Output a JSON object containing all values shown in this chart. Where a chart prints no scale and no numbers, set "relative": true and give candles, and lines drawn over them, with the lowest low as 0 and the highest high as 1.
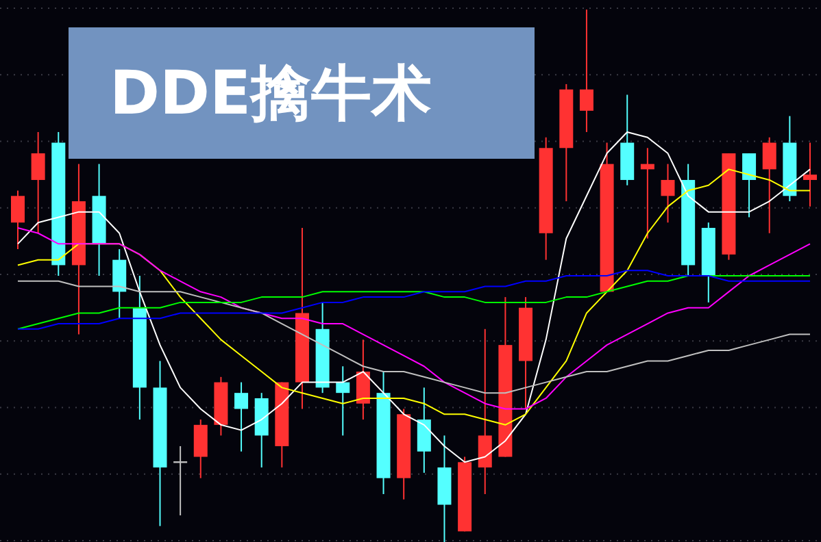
{
  "chart_data": {
    "type": "candlestick",
    "title": "DDE擒牛术",
    "relative": true,
    "grid": "y",
    "categories": [
      null,
      null,
      null,
      null,
      null,
      null,
      null,
      null,
      null,
      null,
      null,
      null,
      null,
      null,
      null,
      null,
      null,
      null,
      null,
      null,
      null,
      null,
      null,
      null,
      null,
      null,
      null,
      null,
      null,
      null,
      null,
      null,
      null,
      null,
      null,
      null,
      null,
      null,
      null,
      null
    ],
    "ohlc": [
      [
        0.6,
        0.66,
        0.55,
        0.65
      ],
      [
        0.68,
        0.77,
        0.58,
        0.73
      ],
      [
        0.75,
        0.77,
        0.5,
        0.52
      ],
      [
        0.52,
        0.71,
        0.39,
        0.64
      ],
      [
        0.65,
        0.71,
        0.5,
        0.56
      ],
      [
        0.53,
        0.55,
        0.42,
        0.47
      ],
      [
        0.44,
        0.5,
        0.23,
        0.29
      ],
      [
        0.29,
        0.34,
        0.03,
        0.14
      ],
      [
        0.15,
        0.18,
        0.05,
        0.15
      ],
      [
        0.16,
        0.23,
        0.12,
        0.22
      ],
      [
        0.22,
        0.31,
        0.2,
        0.3
      ],
      [
        0.28,
        0.3,
        0.17,
        0.25
      ],
      [
        0.27,
        0.28,
        0.14,
        0.2
      ],
      [
        0.18,
        0.3,
        0.14,
        0.3
      ],
      [
        0.3,
        0.59,
        0.25,
        0.43
      ],
      [
        0.4,
        0.45,
        0.28,
        0.29
      ],
      [
        0.3,
        0.33,
        0.2,
        0.28
      ],
      [
        0.26,
        0.38,
        0.23,
        0.32
      ],
      [
        0.28,
        0.32,
        0.09,
        0.12
      ],
      [
        0.12,
        0.25,
        0.08,
        0.24
      ],
      [
        0.23,
        0.29,
        0.13,
        0.17
      ],
      [
        0.14,
        0.2,
        0,
        0.07
      ],
      [
        0.02,
        0.16,
        0.02,
        0.15
      ],
      [
        0.14,
        0.4,
        0.09,
        0.2
      ],
      [
        0.16,
        0.46,
        0.16,
        0.37
      ],
      [
        0.34,
        0.46,
        0.25,
        0.44
      ],
      [
        0.58,
        0.76,
        0.53,
        0.74
      ],
      [
        0.74,
        0.86,
        0.64,
        0.85
      ],
      [
        0.81,
        1,
        0.77,
        0.85
      ],
      [
        0.47,
        0.75,
        0.47,
        0.71
      ],
      [
        0.75,
        0.84,
        0.67,
        0.68
      ],
      [
        0.7,
        0.74,
        0.57,
        0.71
      ],
      [
        0.65,
        0.71,
        0.6,
        0.68
      ],
      [
        0.68,
        0.71,
        0.5,
        0.52
      ],
      [
        0.59,
        0.6,
        0.45,
        0.5
      ],
      [
        0.54,
        0.73,
        0.53,
        0.73
      ],
      [
        0.73,
        0.73,
        0.61,
        0.68
      ],
      [
        0.7,
        0.76,
        0.58,
        0.75
      ],
      [
        0.75,
        0.8,
        0.64,
        0.65
      ],
      [
        0.68,
        0.75,
        0.63,
        0.69
      ]
    ],
    "colors": [
      "#ff3232",
      "#ff3232",
      "#54ffff",
      "#ff3232",
      "#54ffff",
      "#54ffff",
      "#54ffff",
      "#54ffff",
      "#c0c0c0",
      "#ff3232",
      "#ff3232",
      "#54ffff",
      "#54ffff",
      "#ff3232",
      "#ff3232",
      "#54ffff",
      "#54ffff",
      "#ff3232",
      "#54ffff",
      "#ff3232",
      "#54ffff",
      "#54ffff",
      "#ff3232",
      "#ff3232",
      "#ff3232",
      "#ff3232",
      "#ff3232",
      "#ff3232",
      "#ff3232",
      "#ff3232",
      "#54ffff",
      "#ff3232",
      "#ff3232",
      "#54ffff",
      "#54ffff",
      "#ff3232",
      "#54ffff",
      "#ff3232",
      "#54ffff",
      "#ff3232"
    ],
    "series": [
      {
        "type": "line",
        "color": "#ffffff",
        "values": [
          0.56,
          0.6,
          0.61,
          0.62,
          0.62,
          0.58,
          0.47,
          0.37,
          0.29,
          0.25,
          0.22,
          0.21,
          0.23,
          0.26,
          0.3,
          0.3,
          0.3,
          0.32,
          0.28,
          0.24,
          0.22,
          0.18,
          0.15,
          0.16,
          0.19,
          0.24,
          0.38,
          0.57,
          0.65,
          0.73,
          0.77,
          0.76,
          0.73,
          0.65,
          0.62,
          0.62,
          0.62,
          0.64,
          0.67,
          0.7
        ]
      },
      {
        "type": "line",
        "color": "#ffff00",
        "values": [
          0.52,
          0.53,
          0.53,
          0.56,
          0.56,
          0.56,
          0.54,
          0.51,
          0.46,
          0.42,
          0.38,
          0.35,
          0.32,
          0.29,
          0.28,
          0.27,
          0.26,
          0.27,
          0.27,
          0.27,
          0.26,
          0.24,
          0.24,
          0.23,
          0.22,
          0.24,
          0.29,
          0.34,
          0.43,
          0.47,
          0.51,
          0.58,
          0.63,
          0.66,
          0.67,
          0.7,
          0.69,
          0.68,
          0.66,
          0.66
        ]
      },
      {
        "type": "line",
        "color": "#ff00ff",
        "values": [
          0.59,
          0.58,
          0.56,
          0.56,
          0.56,
          0.56,
          0.54,
          0.51,
          0.49,
          0.47,
          0.46,
          0.44,
          0.43,
          0.42,
          0.42,
          0.41,
          0.41,
          0.39,
          0.37,
          0.35,
          0.33,
          0.3,
          0.28,
          0.26,
          0.25,
          0.25,
          0.27,
          0.31,
          0.34,
          0.37,
          0.39,
          0.41,
          0.43,
          0.44,
          0.44,
          0.47,
          0.5,
          0.52,
          0.54,
          0.56
        ]
      },
      {
        "type": "line",
        "color": "#c0c0c0",
        "values": [
          0.49,
          0.49,
          0.49,
          0.48,
          0.48,
          0.48,
          0.47,
          0.47,
          0.47,
          0.46,
          0.45,
          0.44,
          0.43,
          0.41,
          0.39,
          0.37,
          0.35,
          0.33,
          0.32,
          0.32,
          0.31,
          0.3,
          0.29,
          0.28,
          0.28,
          0.29,
          0.3,
          0.31,
          0.32,
          0.32,
          0.33,
          0.34,
          0.34,
          0.35,
          0.36,
          0.36,
          0.37,
          0.38,
          0.39,
          0.39
        ]
      },
      {
        "type": "line",
        "color": "#00ff00",
        "values": [
          0.4,
          0.41,
          0.42,
          0.43,
          0.43,
          0.44,
          0.44,
          0.44,
          0.45,
          0.45,
          0.45,
          0.45,
          0.46,
          0.46,
          0.46,
          0.47,
          0.47,
          0.47,
          0.47,
          0.47,
          0.47,
          0.46,
          0.46,
          0.45,
          0.45,
          0.45,
          0.45,
          0.46,
          0.46,
          0.47,
          0.48,
          0.49,
          0.49,
          0.5,
          0.5,
          0.5,
          0.5,
          0.5,
          0.5,
          0.5
        ]
      },
      {
        "type": "line",
        "color": "#0000ff",
        "values": [
          0.4,
          0.4,
          0.41,
          0.41,
          0.41,
          0.42,
          0.42,
          0.42,
          0.43,
          0.43,
          0.43,
          0.43,
          0.43,
          0.43,
          0.44,
          0.45,
          0.45,
          0.46,
          0.46,
          0.46,
          0.47,
          0.47,
          0.47,
          0.48,
          0.48,
          0.49,
          0.49,
          0.5,
          0.5,
          0.5,
          0.51,
          0.51,
          0.5,
          0.5,
          0.5,
          0.49,
          0.49,
          0.49,
          0.49,
          0.49
        ]
      }
    ]
  }
}
